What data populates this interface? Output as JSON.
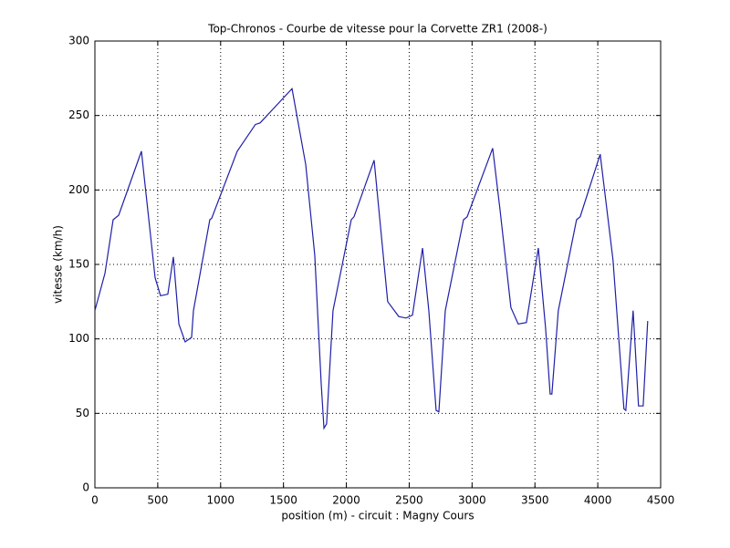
{
  "chart_data": {
    "type": "line",
    "title": "Top-Chronos - Courbe de vitesse pour la Corvette ZR1 (2008-)",
    "xlabel": "position (m) - circuit : Magny Cours",
    "ylabel": "vitesse (km/h)",
    "x": [
      0,
      80,
      145,
      189,
      370,
      479,
      522,
      580,
      624,
      668,
      718,
      769,
      784,
      914,
      929,
      1132,
      1277,
      1314,
      1568,
      1677,
      1749,
      1800,
      1822,
      1843,
      1894,
      2039,
      2061,
      2221,
      2329,
      2417,
      2475,
      2526,
      2606,
      2656,
      2714,
      2736,
      2787,
      2932,
      2961,
      3164,
      3222,
      3309,
      3367,
      3432,
      3527,
      3585,
      3621,
      3635,
      3686,
      3831,
      3860,
      4019,
      4121,
      4208,
      4223,
      4281,
      4324,
      4361,
      4397
    ],
    "series": [
      {
        "name": "vitesse",
        "color": "#1f1fa8",
        "values": [
          119,
          144,
          180,
          183,
          226,
          141,
          129,
          130,
          155,
          110,
          98,
          101,
          119,
          180,
          181,
          226,
          244,
          245,
          268,
          217,
          156,
          70,
          40,
          43,
          119,
          180,
          182,
          220,
          125,
          115,
          114,
          116,
          161,
          119,
          52,
          51,
          119,
          180,
          182,
          228,
          187,
          121,
          110,
          111,
          161,
          107,
          63,
          63,
          119,
          180,
          182,
          224,
          153,
          53,
          52,
          119,
          55,
          55,
          112
        ]
      }
    ],
    "xlim": [
      0,
      4500
    ],
    "xticks": [
      0,
      500,
      1000,
      1500,
      2000,
      2500,
      3000,
      3500,
      4000,
      4500
    ],
    "ylim": [
      0,
      300
    ],
    "yticks": [
      0,
      50,
      100,
      150,
      200,
      250,
      300
    ],
    "grid": true
  }
}
